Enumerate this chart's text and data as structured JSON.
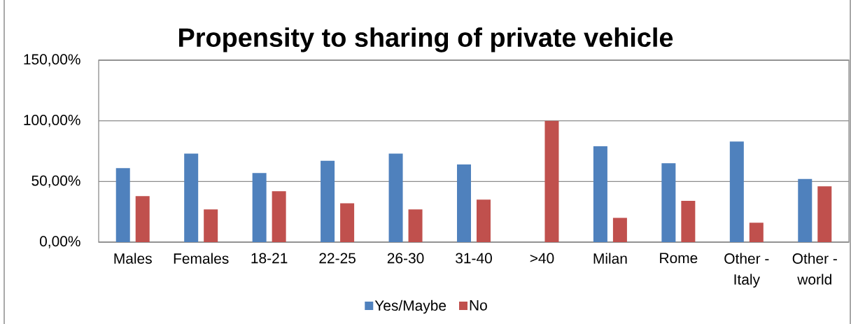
{
  "chart_data": {
    "type": "bar",
    "title": "Propensity to sharing of private vehicle",
    "categories": [
      "Males",
      "Females",
      "18-21",
      "22-25",
      "26-30",
      "31-40",
      ">40",
      "Milan",
      "Rome",
      "Other - Italy",
      "Other - world"
    ],
    "series": [
      {
        "name": "Yes/Maybe",
        "color": "#4f81bd",
        "values": [
          61,
          73,
          57,
          67,
          73,
          64,
          0,
          79,
          65,
          83,
          52
        ]
      },
      {
        "name": "No",
        "color": "#c0504d",
        "values": [
          38,
          27,
          42,
          32,
          27,
          35,
          100,
          20,
          34,
          16,
          46
        ]
      }
    ],
    "ylim": [
      0,
      150
    ],
    "yticks": [
      {
        "value": 0,
        "label": "0,00%"
      },
      {
        "value": 50,
        "label": "50,00%"
      },
      {
        "value": 100,
        "label": "100,00%"
      },
      {
        "value": 150,
        "label": "150,00%"
      }
    ],
    "grid": "y",
    "legend": "bottom"
  }
}
